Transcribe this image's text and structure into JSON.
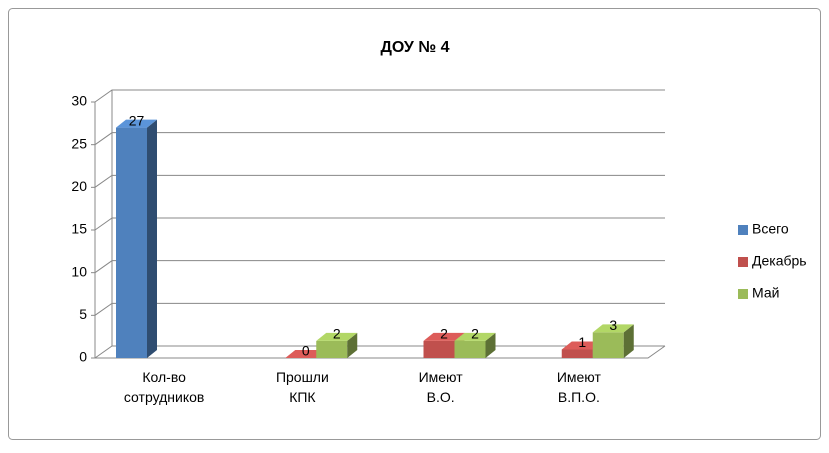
{
  "chart_data": {
    "type": "bar3d",
    "title": "ДОУ № 4",
    "categories": [
      "Кол-во сотрудников",
      "Прошли КПК",
      "Имеют В.О.",
      "Имеют В.П.О."
    ],
    "series": [
      {
        "name": "Всего",
        "color": "#4f81bd",
        "values": [
          27,
          null,
          null,
          null
        ]
      },
      {
        "name": "Декабрь",
        "color": "#c0504d",
        "values": [
          null,
          0,
          2,
          1
        ]
      },
      {
        "name": "Май",
        "color": "#9bbb59",
        "values": [
          null,
          2,
          2,
          3
        ]
      }
    ],
    "ylim": [
      0,
      30
    ],
    "yticks": [
      0,
      5,
      10,
      15,
      20,
      25,
      30
    ],
    "grid": true,
    "legend": "right"
  }
}
